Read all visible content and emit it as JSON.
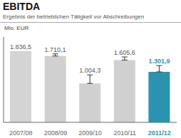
{
  "chart_data": {
    "type": "bar",
    "title": "EBITDA",
    "subtitle": "Ergebnis der betrieblichen Tätigkeit vor Abschreibungen",
    "y_label": "Mio. EUR",
    "categories": [
      "2007/08",
      "2008/09",
      "2009/10",
      "2010/11",
      "2011/12"
    ],
    "values": [
      1836.5,
      1710.1,
      1004.3,
      1605.6,
      1301.9
    ],
    "value_labels": [
      "1.836,5",
      "1.710,1",
      "1.004,3",
      "1.605,6",
      "1.301,9"
    ],
    "error_values": [
      0,
      55,
      220,
      80,
      160
    ],
    "colors": [
      "#d4d4d4",
      "#d0d0d0",
      "#d0d0d0",
      "#d0d0d0",
      "#2a94b0"
    ],
    "ylim": [
      0,
      2200
    ],
    "data_labels": true,
    "tick_labels": "x",
    "grid": false
  }
}
